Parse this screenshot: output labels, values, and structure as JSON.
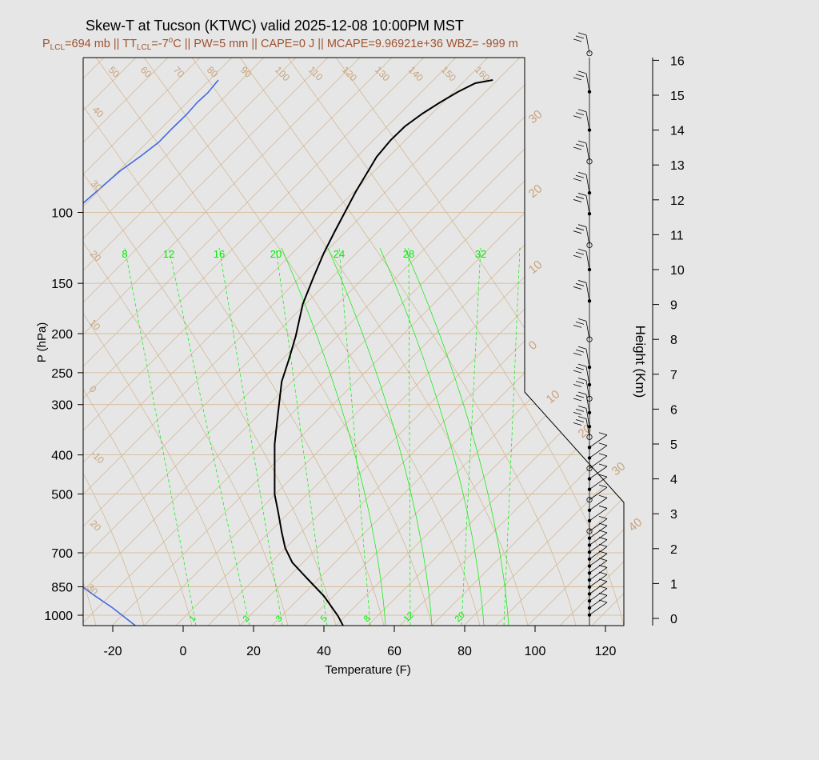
{
  "title": "Skew-T at Tucson (KTWC) valid 2025-12-08 10:00PM MST",
  "subtitle": {
    "plcl": "=694 mb || T",
    "tlcl": "=-7",
    "rest": "C || PW=5 mm || CAPE=0 J || MCAPE=9.96921e+36 WBZ= -999 m",
    "p": "P",
    "t": "T",
    "lcl": "LCL",
    "o": "o"
  },
  "colors": {
    "background": "#e6e6e6",
    "plot_bg": "#e2e2e2",
    "grid": "#d2b48c",
    "isotherm_label": "#c8a27a",
    "mixing": "#00ee00",
    "temperature": "#000000",
    "dewpoint": "#4169e1",
    "subtitle": "#a0522d"
  },
  "chart_data": {
    "type": "line",
    "title": "Skew-T at Tucson (KTWC) valid 2025-12-08 10:00PM MST",
    "xlabel": "Temperature (F)",
    "ylabel": "P (hPa)",
    "y2label": "Height (Km)",
    "x_ticks": [
      "-20",
      "0",
      "20",
      "40",
      "60",
      "80",
      "100",
      "120"
    ],
    "p_ticks": [
      "100",
      "150",
      "200",
      "250",
      "300",
      "400",
      "500",
      "700",
      "850",
      "1000"
    ],
    "height_ticks": [
      "0",
      "1",
      "2",
      "3",
      "4",
      "5",
      "6",
      "7",
      "8",
      "9",
      "10",
      "11",
      "12",
      "13",
      "14",
      "15",
      "16"
    ],
    "isotherm_labels_F": [
      "50",
      "60",
      "70",
      "80",
      "90",
      "100",
      "110",
      "120",
      "130",
      "140",
      "150",
      "160",
      "40",
      "30",
      "20",
      "10",
      "0",
      "-10",
      "20",
      "30"
    ],
    "dry_adiabat_labels": [
      "30",
      "20",
      "10",
      "0",
      "10",
      "20",
      "30",
      "40"
    ],
    "mixing_ratio_top_labels": [
      "8",
      "12",
      "16",
      "20",
      "24",
      "28",
      "32"
    ],
    "mixing_ratio_bottom_labels": [
      "1",
      "2",
      "3",
      "5",
      "8",
      "12",
      "20"
    ],
    "series": [
      {
        "name": "Temperature",
        "color": "#000000",
        "points": [
          [
            56,
            918
          ],
          [
            61,
            916
          ],
          [
            64,
            915
          ],
          [
            66,
            914
          ],
          [
            69,
            912
          ],
          [
            70,
            909
          ],
          [
            71,
            906
          ],
          [
            72,
            901
          ],
          [
            73,
            896
          ],
          [
            70,
            888
          ],
          [
            67,
            878
          ],
          [
            63,
            862
          ],
          [
            59,
            850
          ],
          [
            56,
            836
          ],
          [
            53,
            823
          ],
          [
            49,
            812
          ],
          [
            47,
            795
          ],
          [
            44,
            770
          ],
          [
            40,
            745
          ],
          [
            35,
            722
          ],
          [
            31,
            703
          ],
          [
            29,
            685
          ],
          [
            28,
            665
          ],
          [
            27,
            640
          ],
          [
            26,
            618
          ],
          [
            26,
            590
          ],
          [
            26,
            555
          ],
          [
            27,
            515
          ],
          [
            28,
            477
          ],
          [
            30,
            450
          ],
          [
            32,
            420
          ],
          [
            34,
            380
          ],
          [
            37,
            347
          ],
          [
            40,
            316
          ],
          [
            43,
            290
          ],
          [
            46,
            265
          ],
          [
            49,
            240
          ],
          [
            52,
            218
          ],
          [
            55,
            196
          ],
          [
            59,
            175
          ],
          [
            63,
            158
          ],
          [
            68,
            142
          ],
          [
            73,
            128
          ],
          [
            78,
            115
          ],
          [
            83,
            104
          ],
          [
            88,
            100
          ]
        ]
      },
      {
        "name": "Dewpoint",
        "color": "#4169e1",
        "points": [
          [
            36,
            933
          ],
          [
            34,
            930
          ],
          [
            31,
            932
          ],
          [
            33,
            925
          ],
          [
            30,
            920
          ],
          [
            26,
            917
          ],
          [
            24,
            912
          ],
          [
            22,
            904
          ],
          [
            22,
            896
          ],
          [
            22,
            884
          ],
          [
            21,
            876
          ],
          [
            17,
            860
          ],
          [
            9,
            840
          ],
          [
            1,
            820
          ],
          [
            -6,
            800
          ],
          [
            -13,
            784
          ],
          [
            -20,
            760
          ],
          [
            -26,
            742
          ],
          [
            -32,
            722
          ],
          [
            -35,
            702
          ],
          [
            -37,
            681
          ],
          [
            -39,
            662
          ],
          [
            -40,
            640
          ],
          [
            -42,
            620
          ],
          [
            -43,
            598
          ],
          [
            -45,
            576
          ],
          [
            -47,
            555
          ],
          [
            -49,
            536
          ],
          [
            -51,
            515
          ],
          [
            -53,
            495
          ],
          [
            -55,
            472
          ],
          [
            -56,
            452
          ],
          [
            -57,
            430
          ],
          [
            -58,
            413
          ],
          [
            -59,
            400
          ],
          [
            -55,
            380
          ],
          [
            -50,
            358
          ],
          [
            -45,
            335
          ],
          [
            -40,
            310
          ],
          [
            -35,
            285
          ],
          [
            -30,
            260
          ],
          [
            -24,
            237
          ],
          [
            -18,
            214
          ],
          [
            -12,
            195
          ],
          [
            -7,
            178
          ],
          [
            -3,
            160
          ],
          [
            1,
            143
          ],
          [
            4,
            128
          ],
          [
            7,
            116
          ],
          [
            10,
            100
          ]
        ]
      }
    ],
    "wind_levels_km": [
      0.1,
      0.3,
      0.5,
      0.7,
      0.9,
      1.1,
      1.3,
      1.5,
      1.7,
      1.9,
      2.1,
      2.3,
      2.5,
      2.8,
      3.1,
      3.4,
      3.7,
      4.0,
      4.3,
      4.6,
      4.9,
      5.2,
      5.5,
      5.9,
      6.3,
      6.7,
      7.2,
      8.0,
      9.1,
      10.0,
      10.7,
      11.6,
      12.2,
      13.1,
      14.0,
      15.1,
      16.2
    ],
    "xlim": [
      -28,
      125
    ],
    "plim": [
      1000,
      100
    ],
    "grid": "on",
    "legend": "none"
  }
}
